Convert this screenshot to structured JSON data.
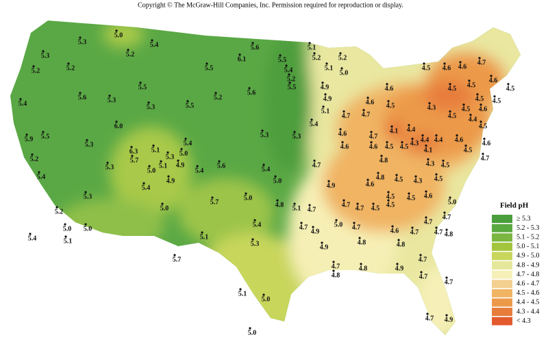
{
  "copyright": "Copyright © The McGraw-Hill Companies, Inc. Permission required for reproduction or display.",
  "legend": {
    "title": "Field pH",
    "items": [
      {
        "label": "≥ 5.3",
        "color": "#4a9e3c"
      },
      {
        "label": "5.2 - 5.3",
        "color": "#5aa940"
      },
      {
        "label": "5.1 - 5.2",
        "color": "#7ab640"
      },
      {
        "label": "5.0 - 5.1",
        "color": "#a2c53d"
      },
      {
        "label": "4.9 - 5.0",
        "color": "#c8d65c"
      },
      {
        "label": "4.8 - 4.9",
        "color": "#e6e79a"
      },
      {
        "label": "4.7 - 4.8",
        "color": "#f6f0b8"
      },
      {
        "label": "4.6 - 4.7",
        "color": "#f3d090"
      },
      {
        "label": "4.5 - 4.6",
        "color": "#f0b463"
      },
      {
        "label": "4.4 - 4.5",
        "color": "#ec9a4a"
      },
      {
        "label": "4.3 - 4.4",
        "color": "#e77d3c"
      },
      {
        "label": "< 4.3",
        "color": "#e35a2f"
      }
    ]
  },
  "stations": [
    "5.3",
    "5.0",
    "5.4",
    "5.3",
    "5.2",
    "5.2",
    "5.2",
    "5.6",
    "5.3",
    "5.4",
    "5.5",
    "5.3",
    "5.5",
    "5.2",
    "5.5",
    "6.1",
    "5.6",
    "5.6",
    "6.0",
    "5.9",
    "5.5",
    "5.2",
    "5.4",
    "5.3",
    "6.3",
    "5.7",
    "5.1",
    "5.3",
    "5.0",
    "5.4",
    "4.9",
    "5.0",
    "5.1",
    "5.3",
    "5.4",
    "4.9",
    "5.4",
    "5.6",
    "5.4",
    "5.3",
    "5.3",
    "5.0",
    "5.3",
    "5.2",
    "5.0",
    "5.7",
    "5.0",
    "4.8",
    "5.1",
    "4.7",
    "5.4",
    "5.0",
    "5.0",
    "5.1",
    "5.1",
    "5.3",
    "5.4",
    "5.7",
    "4.7",
    "4.9",
    "5.0",
    "4.9",
    "5.1",
    "5.0",
    "5.0",
    "5.5",
    "5.4",
    "5.2",
    "5.5",
    "5.1",
    "5.2",
    "5.1",
    "5.2",
    "5.0",
    "4.9",
    "4.9",
    "5.1",
    "5.4",
    "4.7",
    "4.9",
    "4.6",
    "4.6",
    "4.7",
    "4.7",
    "4.7",
    "4.6",
    "4.8",
    "4.6",
    "4.5",
    "4.6",
    "4.1",
    "4.4",
    "4.5",
    "4.5",
    "4.3",
    "4.4",
    "4.4",
    "4.1",
    "4.3",
    "4.6",
    "4.8",
    "4.5",
    "4.3",
    "4.5",
    "4.5",
    "4.5",
    "4.6",
    "5.0",
    "4.5",
    "4.5",
    "4.7",
    "4.7",
    "4.7",
    "4.6",
    "4.7",
    "4.7",
    "4.7",
    "4.8",
    "4.7",
    "4.8",
    "4.8",
    "4.7",
    "4.8",
    "4.8",
    "4.9",
    "4.7",
    "4.7",
    "4.7",
    "4.7",
    "4.9",
    "4.5",
    "4.6",
    "4.6",
    "4.7",
    "4.6",
    "4.5",
    "4.5",
    "4.5",
    "4.5",
    "4.5",
    "4.3",
    "4.5",
    "4.6",
    "4.5",
    "4.4",
    "4.5",
    "4.6",
    "4.7",
    "4.6",
    "4.5",
    "4.5"
  ]
}
